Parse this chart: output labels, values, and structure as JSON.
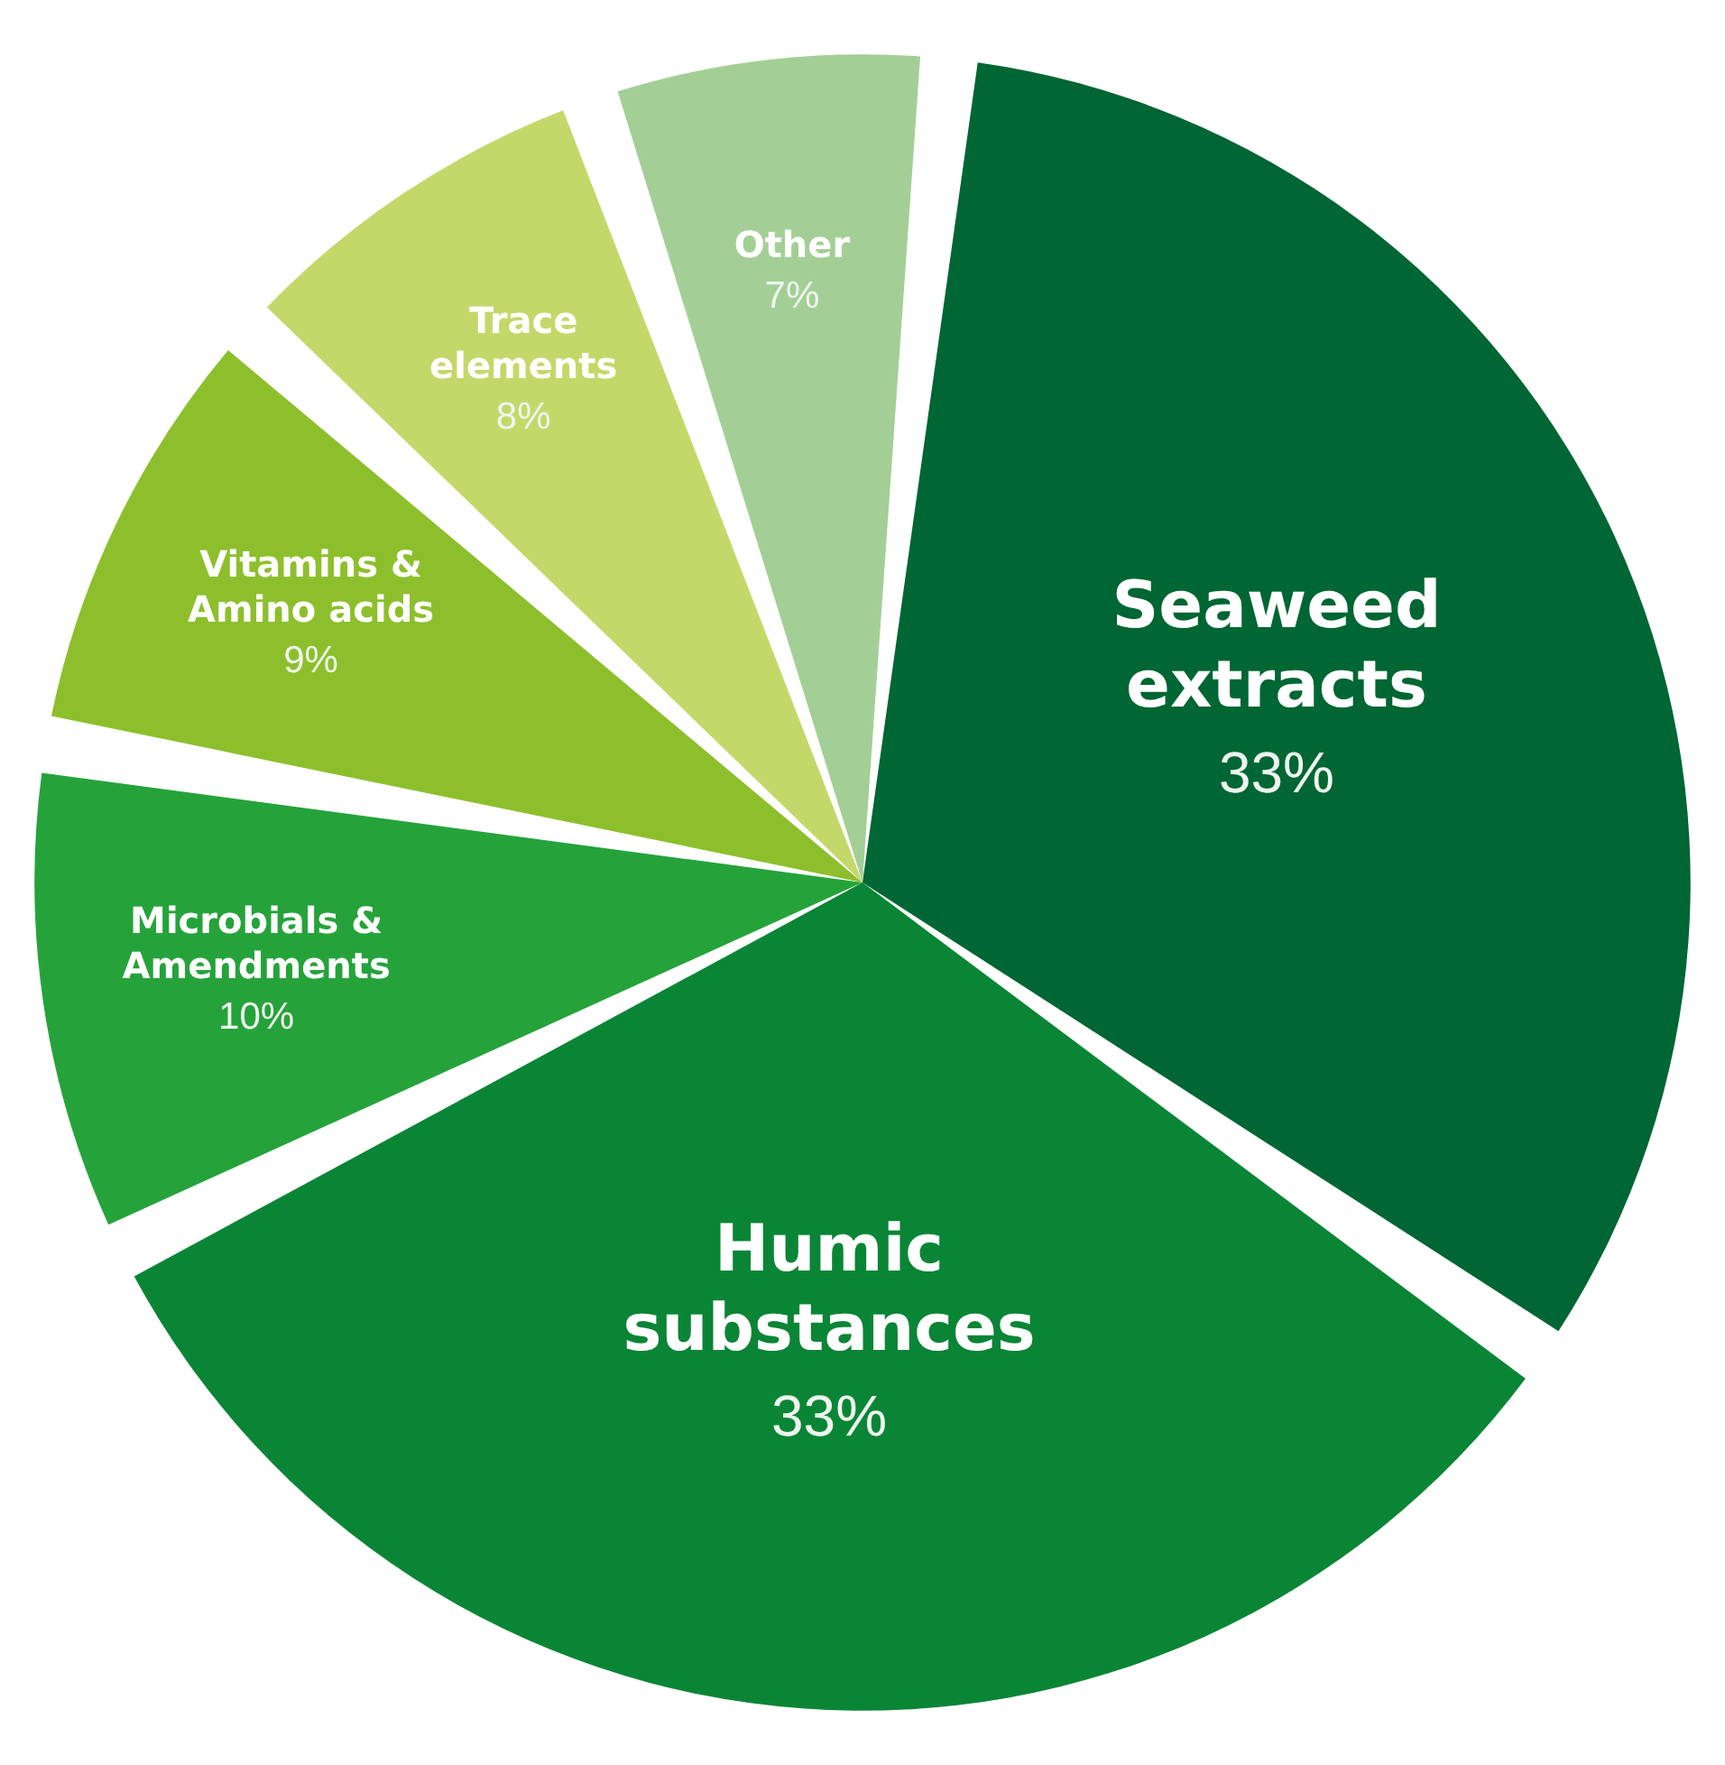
{
  "chart_data": {
    "type": "pie",
    "categories": [
      "Seaweed extracts",
      "Humic substances",
      "Microbials & Amendments",
      "Vitamins & Amino acids",
      "Trace elements",
      "Other"
    ],
    "values": [
      33,
      33,
      10,
      9,
      8,
      7
    ],
    "value_labels": [
      "33%",
      "33%",
      "10%",
      "9%",
      "8%",
      "7%"
    ],
    "colors": [
      "#006633",
      "#0a8536",
      "#25a33a",
      "#8dbf2c",
      "#c4d86a",
      "#a3cf96"
    ],
    "legend": false
  }
}
